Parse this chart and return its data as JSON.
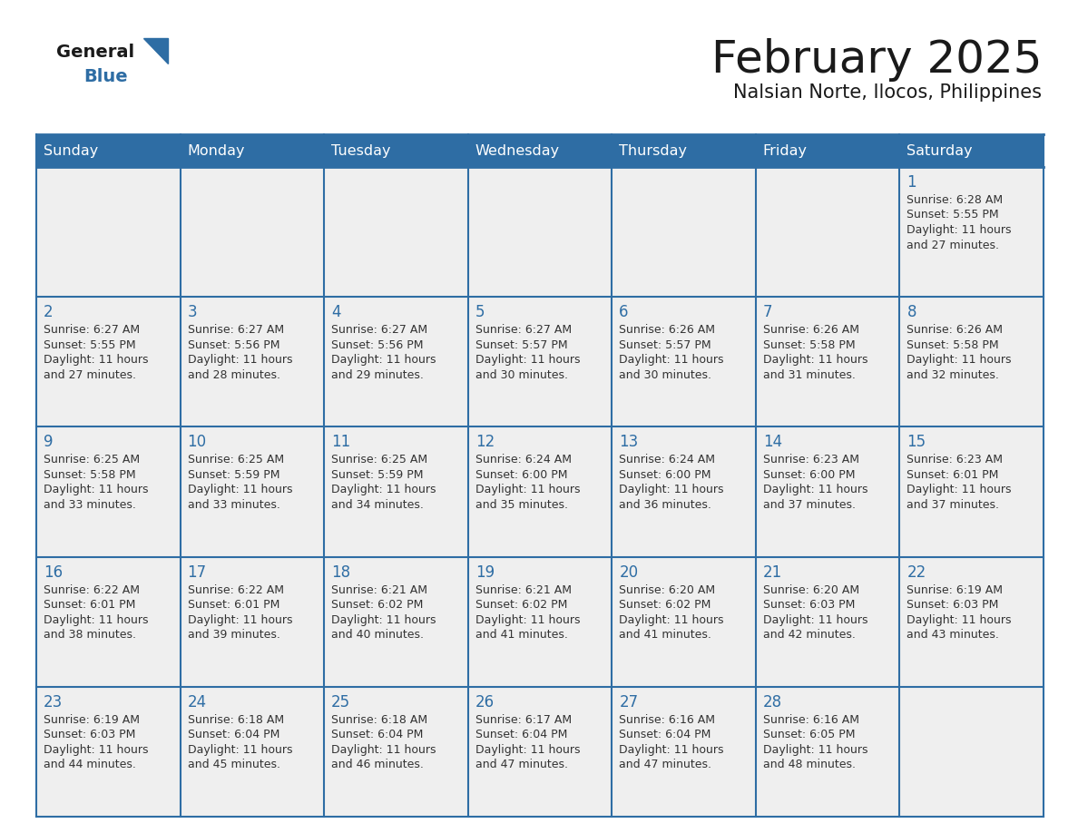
{
  "title": "February 2025",
  "subtitle": "Nalsian Norte, Ilocos, Philippines",
  "days_of_week": [
    "Sunday",
    "Monday",
    "Tuesday",
    "Wednesday",
    "Thursday",
    "Friday",
    "Saturday"
  ],
  "header_bg": "#2E6DA4",
  "header_text": "#FFFFFF",
  "cell_bg": "#EFEFEF",
  "border_color": "#2E6DA4",
  "day_num_color": "#2E6DA4",
  "info_color": "#333333",
  "title_color": "#1a1a1a",
  "logo_general_color": "#1a1a1a",
  "logo_blue_color": "#2E6DA4",
  "calendar_data": [
    [
      null,
      null,
      null,
      null,
      null,
      null,
      {
        "day": 1,
        "sunrise": "6:28 AM",
        "sunset": "5:55 PM",
        "daylight": "11 hours and 27 minutes."
      }
    ],
    [
      {
        "day": 2,
        "sunrise": "6:27 AM",
        "sunset": "5:55 PM",
        "daylight": "11 hours and 27 minutes."
      },
      {
        "day": 3,
        "sunrise": "6:27 AM",
        "sunset": "5:56 PM",
        "daylight": "11 hours and 28 minutes."
      },
      {
        "day": 4,
        "sunrise": "6:27 AM",
        "sunset": "5:56 PM",
        "daylight": "11 hours and 29 minutes."
      },
      {
        "day": 5,
        "sunrise": "6:27 AM",
        "sunset": "5:57 PM",
        "daylight": "11 hours and 30 minutes."
      },
      {
        "day": 6,
        "sunrise": "6:26 AM",
        "sunset": "5:57 PM",
        "daylight": "11 hours and 30 minutes."
      },
      {
        "day": 7,
        "sunrise": "6:26 AM",
        "sunset": "5:58 PM",
        "daylight": "11 hours and 31 minutes."
      },
      {
        "day": 8,
        "sunrise": "6:26 AM",
        "sunset": "5:58 PM",
        "daylight": "11 hours and 32 minutes."
      }
    ],
    [
      {
        "day": 9,
        "sunrise": "6:25 AM",
        "sunset": "5:58 PM",
        "daylight": "11 hours and 33 minutes."
      },
      {
        "day": 10,
        "sunrise": "6:25 AM",
        "sunset": "5:59 PM",
        "daylight": "11 hours and 33 minutes."
      },
      {
        "day": 11,
        "sunrise": "6:25 AM",
        "sunset": "5:59 PM",
        "daylight": "11 hours and 34 minutes."
      },
      {
        "day": 12,
        "sunrise": "6:24 AM",
        "sunset": "6:00 PM",
        "daylight": "11 hours and 35 minutes."
      },
      {
        "day": 13,
        "sunrise": "6:24 AM",
        "sunset": "6:00 PM",
        "daylight": "11 hours and 36 minutes."
      },
      {
        "day": 14,
        "sunrise": "6:23 AM",
        "sunset": "6:00 PM",
        "daylight": "11 hours and 37 minutes."
      },
      {
        "day": 15,
        "sunrise": "6:23 AM",
        "sunset": "6:01 PM",
        "daylight": "11 hours and 37 minutes."
      }
    ],
    [
      {
        "day": 16,
        "sunrise": "6:22 AM",
        "sunset": "6:01 PM",
        "daylight": "11 hours and 38 minutes."
      },
      {
        "day": 17,
        "sunrise": "6:22 AM",
        "sunset": "6:01 PM",
        "daylight": "11 hours and 39 minutes."
      },
      {
        "day": 18,
        "sunrise": "6:21 AM",
        "sunset": "6:02 PM",
        "daylight": "11 hours and 40 minutes."
      },
      {
        "day": 19,
        "sunrise": "6:21 AM",
        "sunset": "6:02 PM",
        "daylight": "11 hours and 41 minutes."
      },
      {
        "day": 20,
        "sunrise": "6:20 AM",
        "sunset": "6:02 PM",
        "daylight": "11 hours and 41 minutes."
      },
      {
        "day": 21,
        "sunrise": "6:20 AM",
        "sunset": "6:03 PM",
        "daylight": "11 hours and 42 minutes."
      },
      {
        "day": 22,
        "sunrise": "6:19 AM",
        "sunset": "6:03 PM",
        "daylight": "11 hours and 43 minutes."
      }
    ],
    [
      {
        "day": 23,
        "sunrise": "6:19 AM",
        "sunset": "6:03 PM",
        "daylight": "11 hours and 44 minutes."
      },
      {
        "day": 24,
        "sunrise": "6:18 AM",
        "sunset": "6:04 PM",
        "daylight": "11 hours and 45 minutes."
      },
      {
        "day": 25,
        "sunrise": "6:18 AM",
        "sunset": "6:04 PM",
        "daylight": "11 hours and 46 minutes."
      },
      {
        "day": 26,
        "sunrise": "6:17 AM",
        "sunset": "6:04 PM",
        "daylight": "11 hours and 47 minutes."
      },
      {
        "day": 27,
        "sunrise": "6:16 AM",
        "sunset": "6:04 PM",
        "daylight": "11 hours and 47 minutes."
      },
      {
        "day": 28,
        "sunrise": "6:16 AM",
        "sunset": "6:05 PM",
        "daylight": "11 hours and 48 minutes."
      },
      null
    ]
  ]
}
